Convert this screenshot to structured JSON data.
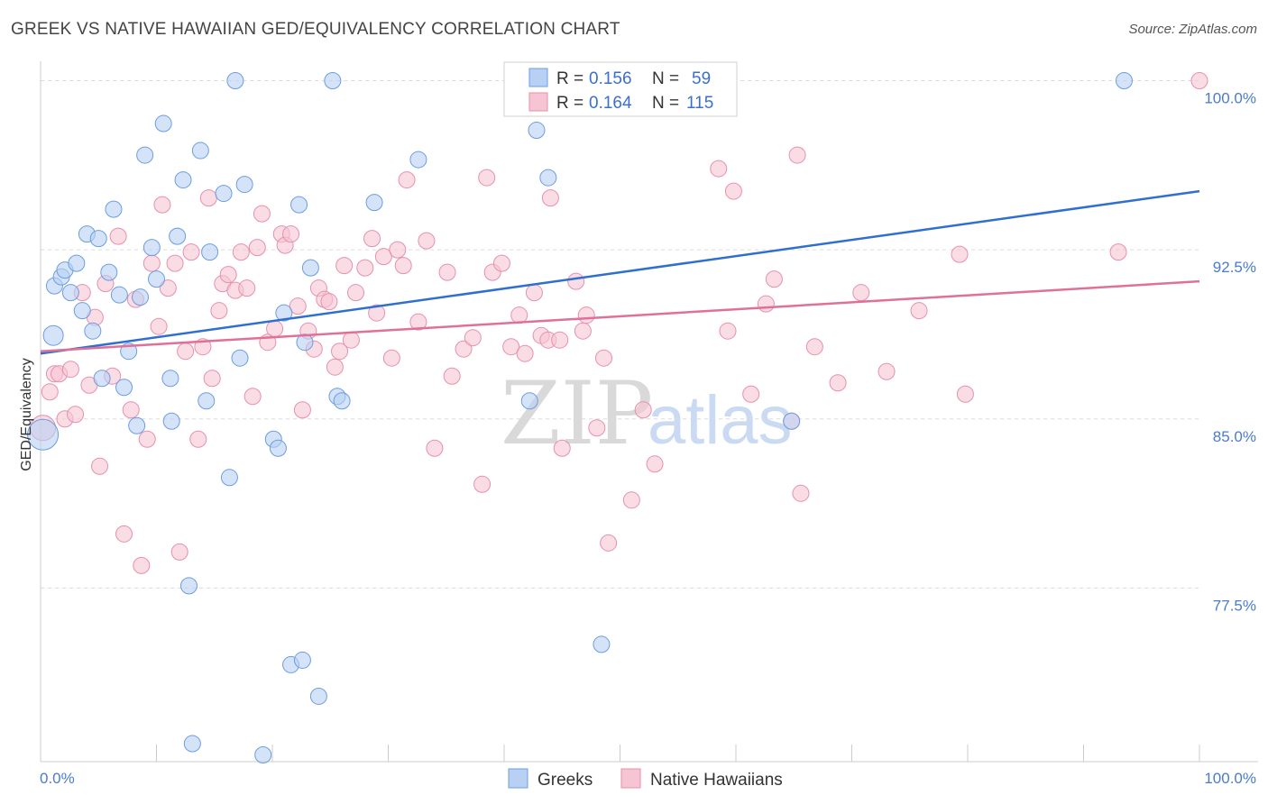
{
  "header": {
    "title": "GREEK VS NATIVE HAWAIIAN GED/EQUIVALENCY CORRELATION CHART",
    "source": "Source: ZipAtlas.com"
  },
  "watermark": {
    "zip": "ZIP",
    "atlas": "atlas"
  },
  "legend": {
    "r_label": "R =",
    "n_label": "N =",
    "items": [
      {
        "r": "0.156",
        "n": "59"
      },
      {
        "r": "0.164",
        "n": "115"
      }
    ]
  },
  "colors": {
    "greeks_fill": "#b8d0f3",
    "greeks_stroke": "#6c9de0",
    "greeks_line": "#2f6fd0",
    "hawaiians_fill": "#f7c4d4",
    "hawaiians_stroke": "#e690ae",
    "hawaiians_line": "#e07098",
    "grid": "#dcdcdc",
    "tick_text": "#4a7bd0"
  },
  "chart_data": {
    "type": "scatter",
    "xlabel": "",
    "ylabel": "GED/Equivalency",
    "xlim": [
      0,
      100
    ],
    "ylim": [
      69.8,
      100.7
    ],
    "x_tick_labels": [
      "0.0%",
      "100.0%"
    ],
    "y_ticks": [
      77.5,
      85.0,
      92.5,
      100.0
    ],
    "y_tick_labels": [
      "77.5%",
      "85.0%",
      "92.5%",
      "100.0%"
    ],
    "grid": "horizontal dashed",
    "legend_position": "top-center",
    "series": [
      {
        "name": "Greeks",
        "r": 0.156,
        "n": 59,
        "trend": {
          "x": [
            0,
            100
          ],
          "y": [
            87.9,
            95.1
          ]
        },
        "points": [
          [
            0.2,
            84.3
          ],
          [
            1.1,
            88.7
          ],
          [
            1.2,
            90.9
          ],
          [
            1.8,
            91.3
          ],
          [
            2.1,
            91.6
          ],
          [
            2.6,
            90.6
          ],
          [
            3.1,
            91.9
          ],
          [
            3.6,
            89.8
          ],
          [
            4.0,
            93.2
          ],
          [
            4.5,
            88.9
          ],
          [
            5.0,
            93.0
          ],
          [
            5.3,
            86.8
          ],
          [
            5.9,
            91.5
          ],
          [
            6.3,
            94.3
          ],
          [
            6.8,
            90.5
          ],
          [
            7.2,
            86.4
          ],
          [
            7.6,
            88.0
          ],
          [
            8.3,
            84.7
          ],
          [
            8.6,
            90.4
          ],
          [
            9.0,
            96.7
          ],
          [
            9.6,
            92.6
          ],
          [
            10.0,
            91.2
          ],
          [
            10.6,
            98.1
          ],
          [
            11.2,
            86.8
          ],
          [
            11.3,
            84.9
          ],
          [
            11.8,
            93.1
          ],
          [
            12.3,
            95.6
          ],
          [
            12.8,
            77.6
          ],
          [
            13.1,
            70.6
          ],
          [
            13.8,
            96.9
          ],
          [
            14.3,
            85.8
          ],
          [
            14.6,
            92.4
          ],
          [
            15.8,
            95.0
          ],
          [
            16.3,
            82.4
          ],
          [
            16.8,
            100.0
          ],
          [
            17.2,
            87.7
          ],
          [
            17.6,
            95.4
          ],
          [
            19.2,
            70.1
          ],
          [
            20.1,
            84.1
          ],
          [
            20.5,
            83.7
          ],
          [
            21.0,
            89.7
          ],
          [
            21.6,
            74.1
          ],
          [
            22.6,
            74.3
          ],
          [
            22.3,
            94.5
          ],
          [
            23.3,
            91.7
          ],
          [
            22.8,
            88.4
          ],
          [
            24.0,
            72.7
          ],
          [
            25.2,
            100.0
          ],
          [
            25.6,
            86.0
          ],
          [
            26.0,
            85.8
          ],
          [
            28.8,
            94.6
          ],
          [
            32.6,
            96.5
          ],
          [
            42.2,
            85.8
          ],
          [
            42.8,
            97.8
          ],
          [
            43.8,
            95.7
          ],
          [
            48.4,
            75.0
          ],
          [
            52.2,
            100.0
          ],
          [
            64.8,
            84.9
          ],
          [
            93.5,
            100.0
          ]
        ]
      },
      {
        "name": "Native Hawaiians",
        "r": 0.164,
        "n": 115,
        "trend": {
          "x": [
            0,
            100
          ],
          "y": [
            88.0,
            91.1
          ]
        },
        "points": [
          [
            0.2,
            84.6
          ],
          [
            0.8,
            86.2
          ],
          [
            1.2,
            87.0
          ],
          [
            1.6,
            87.0
          ],
          [
            2.1,
            85.0
          ],
          [
            2.6,
            87.2
          ],
          [
            3.0,
            85.2
          ],
          [
            3.6,
            90.6
          ],
          [
            4.2,
            86.5
          ],
          [
            4.7,
            89.5
          ],
          [
            5.1,
            82.9
          ],
          [
            5.6,
            91.0
          ],
          [
            6.2,
            86.9
          ],
          [
            6.7,
            93.1
          ],
          [
            7.2,
            79.9
          ],
          [
            7.8,
            85.4
          ],
          [
            8.2,
            90.3
          ],
          [
            8.7,
            78.5
          ],
          [
            9.2,
            84.1
          ],
          [
            9.6,
            91.9
          ],
          [
            10.2,
            89.1
          ],
          [
            10.5,
            94.5
          ],
          [
            11.0,
            90.8
          ],
          [
            11.6,
            91.9
          ],
          [
            12.0,
            79.1
          ],
          [
            12.5,
            88.0
          ],
          [
            13.0,
            92.4
          ],
          [
            13.6,
            84.1
          ],
          [
            14.0,
            88.2
          ],
          [
            14.5,
            94.8
          ],
          [
            14.8,
            86.8
          ],
          [
            15.4,
            89.8
          ],
          [
            15.7,
            91.0
          ],
          [
            16.2,
            91.4
          ],
          [
            16.8,
            90.7
          ],
          [
            17.3,
            92.4
          ],
          [
            17.8,
            90.8
          ],
          [
            18.3,
            86.0
          ],
          [
            18.7,
            92.6
          ],
          [
            19.1,
            94.1
          ],
          [
            19.6,
            88.4
          ],
          [
            20.2,
            89.0
          ],
          [
            20.8,
            93.2
          ],
          [
            21.1,
            92.7
          ],
          [
            21.6,
            93.2
          ],
          [
            22.2,
            90.0
          ],
          [
            22.6,
            85.4
          ],
          [
            23.1,
            88.9
          ],
          [
            23.6,
            88.1
          ],
          [
            24.0,
            90.8
          ],
          [
            24.5,
            90.3
          ],
          [
            24.9,
            90.2
          ],
          [
            25.4,
            87.3
          ],
          [
            25.8,
            88.0
          ],
          [
            26.2,
            91.8
          ],
          [
            26.8,
            88.5
          ],
          [
            27.2,
            90.6
          ],
          [
            28.0,
            91.7
          ],
          [
            28.6,
            93.0
          ],
          [
            29.0,
            89.7
          ],
          [
            29.6,
            92.2
          ],
          [
            30.3,
            87.7
          ],
          [
            30.8,
            92.5
          ],
          [
            31.3,
            91.8
          ],
          [
            31.6,
            95.6
          ],
          [
            32.6,
            89.3
          ],
          [
            33.3,
            92.9
          ],
          [
            34.0,
            83.7
          ],
          [
            35.1,
            91.5
          ],
          [
            35.5,
            86.9
          ],
          [
            36.5,
            88.1
          ],
          [
            37.3,
            88.6
          ],
          [
            38.1,
            82.1
          ],
          [
            38.5,
            95.7
          ],
          [
            39.0,
            91.5
          ],
          [
            39.8,
            91.9
          ],
          [
            40.6,
            88.2
          ],
          [
            41.3,
            89.6
          ],
          [
            41.8,
            87.9
          ],
          [
            42.6,
            90.6
          ],
          [
            43.2,
            88.7
          ],
          [
            43.8,
            88.5
          ],
          [
            44.0,
            94.8
          ],
          [
            44.8,
            88.5
          ],
          [
            45.0,
            83.7
          ],
          [
            46.2,
            91.1
          ],
          [
            46.8,
            88.9
          ],
          [
            47.1,
            89.6
          ],
          [
            48.0,
            84.6
          ],
          [
            48.6,
            87.7
          ],
          [
            49.0,
            79.5
          ],
          [
            51.0,
            81.4
          ],
          [
            52.0,
            85.4
          ],
          [
            53.0,
            83.0
          ],
          [
            58.5,
            96.1
          ],
          [
            59.3,
            88.9
          ],
          [
            59.8,
            95.1
          ],
          [
            61.3,
            86.1
          ],
          [
            62.6,
            90.1
          ],
          [
            63.3,
            91.2
          ],
          [
            64.8,
            84.9
          ],
          [
            65.3,
            96.7
          ],
          [
            65.6,
            81.7
          ],
          [
            66.8,
            88.2
          ],
          [
            68.8,
            86.6
          ],
          [
            70.8,
            90.6
          ],
          [
            73.0,
            87.1
          ],
          [
            75.8,
            89.8
          ],
          [
            79.3,
            92.3
          ],
          [
            79.8,
            86.1
          ],
          [
            93.0,
            92.4
          ],
          [
            100.0,
            100.0
          ],
          [
            58.3,
            100.0
          ]
        ]
      }
    ]
  }
}
